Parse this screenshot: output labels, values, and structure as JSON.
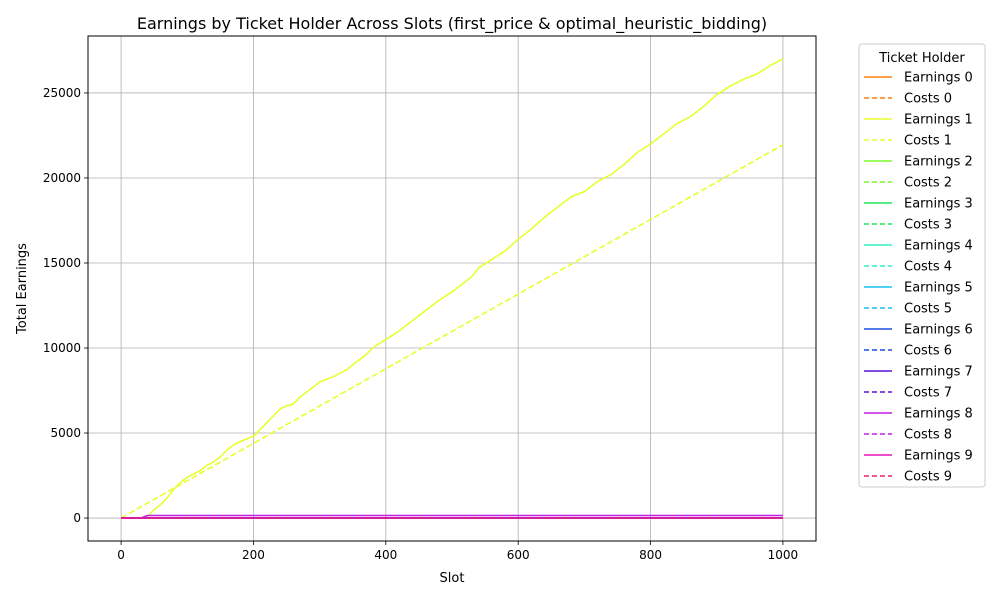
{
  "chart_data": {
    "type": "line",
    "title": "Earnings by Ticket Holder Across Slots (first_price & optimal_heuristic_bidding)",
    "xlabel": "Slot",
    "ylabel": "Total Earnings",
    "xlim": [
      -50,
      1050
    ],
    "ylim": [
      -1350,
      28350
    ],
    "xticks": [
      0,
      200,
      400,
      600,
      800,
      1000
    ],
    "yticks": [
      0,
      5000,
      10000,
      15000,
      20000,
      25000
    ],
    "grid": true,
    "legend_title": "Ticket Holder",
    "legend_position": "outside-right",
    "series": [
      {
        "name": "Earnings 0",
        "color": "#ff7f0e",
        "dash": "solid",
        "x": [
          0,
          1000
        ],
        "y": [
          0,
          0
        ]
      },
      {
        "name": "Costs 0",
        "color": "#ff7f0e",
        "dash": "dashed",
        "x": [
          0,
          1000
        ],
        "y": [
          0,
          0
        ]
      },
      {
        "name": "Earnings 1",
        "color": "#e8ff2c",
        "dash": "solid",
        "x": [
          0,
          5,
          10,
          15,
          20,
          25,
          30,
          35,
          40,
          45,
          50,
          60,
          70,
          80,
          90,
          100,
          120,
          130,
          140,
          150,
          160,
          170,
          180,
          190,
          200,
          210,
          220,
          230,
          240,
          250,
          260,
          270,
          280,
          300,
          320,
          340,
          350,
          360,
          370,
          380,
          400,
          420,
          440,
          460,
          480,
          500,
          520,
          530,
          540,
          560,
          580,
          600,
          620,
          640,
          660,
          680,
          700,
          720,
          740,
          760,
          780,
          800,
          820,
          840,
          860,
          880,
          900,
          920,
          940,
          960,
          980,
          1000
        ],
        "y": [
          0,
          0,
          0,
          0,
          0,
          0,
          0,
          0,
          0,
          300,
          500,
          800,
          1200,
          1700,
          2100,
          2400,
          2800,
          3100,
          3300,
          3600,
          4000,
          4300,
          4500,
          4650,
          4800,
          5200,
          5600,
          6000,
          6400,
          6600,
          6700,
          7100,
          7400,
          8000,
          8300,
          8700,
          9000,
          9300,
          9600,
          10000,
          10500,
          11000,
          11600,
          12200,
          12800,
          13300,
          13900,
          14200,
          14700,
          15200,
          15700,
          16400,
          17000,
          17700,
          18300,
          18900,
          19200,
          19800,
          20200,
          20800,
          21500,
          22000,
          22600,
          23200,
          23600,
          24200,
          24900,
          25400,
          25800,
          26100,
          26600,
          27000
        ]
      },
      {
        "name": "Costs 1",
        "color": "#e8ff2c",
        "dash": "dashed",
        "x": [
          0,
          1000
        ],
        "y": [
          0,
          21950
        ]
      },
      {
        "name": "Earnings 2",
        "color": "#7cfc28",
        "dash": "solid",
        "x": [
          0,
          1000
        ],
        "y": [
          0,
          0
        ]
      },
      {
        "name": "Costs 2",
        "color": "#7cfc28",
        "dash": "dashed",
        "x": [
          0,
          1000
        ],
        "y": [
          0,
          0
        ]
      },
      {
        "name": "Earnings 3",
        "color": "#1ee85a",
        "dash": "solid",
        "x": [
          0,
          1000
        ],
        "y": [
          0,
          0
        ]
      },
      {
        "name": "Costs 3",
        "color": "#1ee85a",
        "dash": "dashed",
        "x": [
          0,
          1000
        ],
        "y": [
          0,
          0
        ]
      },
      {
        "name": "Earnings 4",
        "color": "#2ff0c4",
        "dash": "solid",
        "x": [
          0,
          1000
        ],
        "y": [
          0,
          0
        ]
      },
      {
        "name": "Costs 4",
        "color": "#2ff0c4",
        "dash": "dashed",
        "x": [
          0,
          1000
        ],
        "y": [
          0,
          0
        ]
      },
      {
        "name": "Earnings 5",
        "color": "#18c2f5",
        "dash": "solid",
        "x": [
          0,
          1000
        ],
        "y": [
          0,
          0
        ]
      },
      {
        "name": "Costs 5",
        "color": "#18c2f5",
        "dash": "dashed",
        "x": [
          0,
          1000
        ],
        "y": [
          0,
          0
        ]
      },
      {
        "name": "Earnings 6",
        "color": "#1a4fe0",
        "dash": "solid",
        "x": [
          0,
          1000
        ],
        "y": [
          0,
          0
        ]
      },
      {
        "name": "Costs 6",
        "color": "#1a4fe0",
        "dash": "dashed",
        "x": [
          0,
          1000
        ],
        "y": [
          0,
          0
        ]
      },
      {
        "name": "Earnings 7",
        "color": "#5a10d8",
        "dash": "solid",
        "x": [
          0,
          1000
        ],
        "y": [
          0,
          0
        ]
      },
      {
        "name": "Costs 7",
        "color": "#5a10d8",
        "dash": "dashed",
        "x": [
          0,
          1000
        ],
        "y": [
          0,
          0
        ]
      },
      {
        "name": "Earnings 8",
        "color": "#c01ee8",
        "dash": "solid",
        "x": [
          0,
          30,
          40,
          1000
        ],
        "y": [
          0,
          0,
          150,
          150
        ]
      },
      {
        "name": "Costs 8",
        "color": "#c01ee8",
        "dash": "dashed",
        "x": [
          0,
          1000
        ],
        "y": [
          0,
          0
        ]
      },
      {
        "name": "Earnings 9",
        "color": "#e814b8",
        "dash": "solid",
        "x": [
          0,
          1000
        ],
        "y": [
          0,
          0
        ]
      },
      {
        "name": "Costs 9",
        "color": "#f01a70",
        "dash": "dashed",
        "x": [
          0,
          1000
        ],
        "y": [
          0,
          0
        ]
      }
    ]
  }
}
